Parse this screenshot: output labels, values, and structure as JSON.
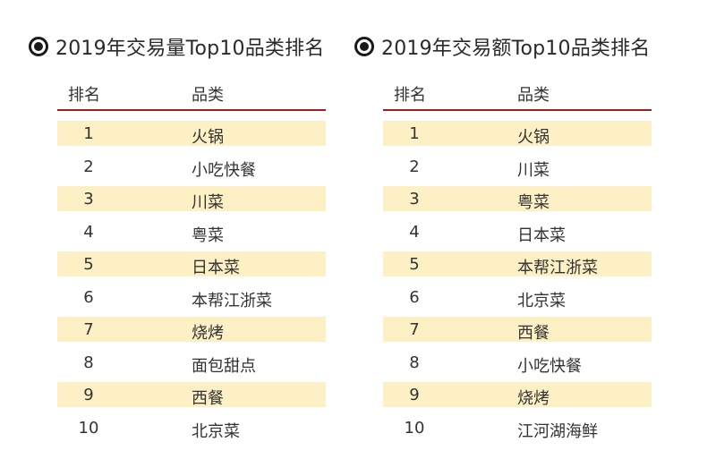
{
  "left_table": {
    "title": "2019年交易量Top10品类排名",
    "headers": {
      "rank": "排名",
      "category": "品类"
    },
    "rows": [
      {
        "rank": "1",
        "category": "火锅"
      },
      {
        "rank": "2",
        "category": "小吃快餐"
      },
      {
        "rank": "3",
        "category": "川菜"
      },
      {
        "rank": "4",
        "category": "粤菜"
      },
      {
        "rank": "5",
        "category": "日本菜"
      },
      {
        "rank": "6",
        "category": "本帮江浙菜"
      },
      {
        "rank": "7",
        "category": "烧烤"
      },
      {
        "rank": "8",
        "category": "面包甜点"
      },
      {
        "rank": "9",
        "category": "西餐"
      },
      {
        "rank": "10",
        "category": "北京菜"
      }
    ]
  },
  "right_table": {
    "title": "2019年交易额Top10品类排名",
    "headers": {
      "rank": "排名",
      "category": "品类"
    },
    "rows": [
      {
        "rank": "1",
        "category": "火锅"
      },
      {
        "rank": "2",
        "category": "川菜"
      },
      {
        "rank": "3",
        "category": "粤菜"
      },
      {
        "rank": "4",
        "category": "日本菜"
      },
      {
        "rank": "5",
        "category": "本帮江浙菜"
      },
      {
        "rank": "6",
        "category": "北京菜"
      },
      {
        "rank": "7",
        "category": "西餐"
      },
      {
        "rank": "8",
        "category": "小吃快餐"
      },
      {
        "rank": "9",
        "category": "烧烤"
      },
      {
        "rank": "10",
        "category": "江河湖海鲜"
      }
    ]
  },
  "colors": {
    "row_highlight": "#fcf0c4",
    "header_rule": "#9a1f1f",
    "bullet": "#1a1a1a"
  },
  "icons": {
    "title_bullet": "radio-bullet-icon"
  }
}
